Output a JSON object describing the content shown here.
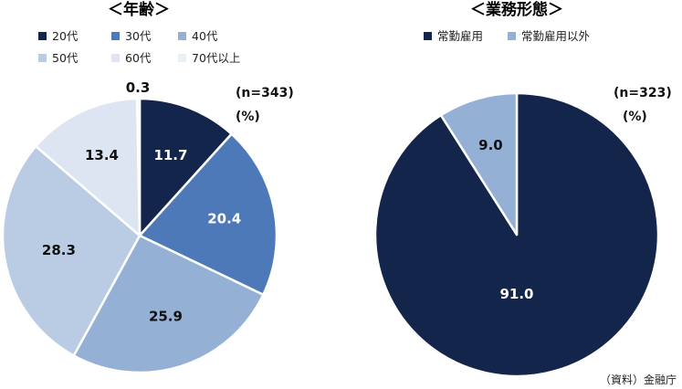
{
  "source": "（資料）金融庁",
  "colors": {
    "c20": "#13254a",
    "c30": "#4e79b8",
    "c40": "#94b0d4",
    "c50": "#b9cce4",
    "c60": "#dce5f1",
    "c70": "#e9f0f6",
    "regular": "#13254a",
    "other": "#94b0d4"
  },
  "chart_data": [
    {
      "type": "pie",
      "title": "＜年齢＞",
      "n_label": "(n=343)",
      "unit_label": "(%)",
      "legend": [
        {
          "label": "20代",
          "color": "#13254a"
        },
        {
          "label": "30代",
          "color": "#4e79b8"
        },
        {
          "label": "40代",
          "color": "#94b0d4"
        },
        {
          "label": "50代",
          "color": "#b9cce4"
        },
        {
          "label": "60代",
          "color": "#dce5f1"
        },
        {
          "label": "70代以上",
          "color": "#e9f0f6"
        }
      ],
      "slices": [
        {
          "category": "20代",
          "value": 11.7,
          "label": "11.7"
        },
        {
          "category": "30代",
          "value": 20.4,
          "label": "20.4"
        },
        {
          "category": "40代",
          "value": 25.9,
          "label": "25.9"
        },
        {
          "category": "50代",
          "value": 28.3,
          "label": "28.3"
        },
        {
          "category": "60代",
          "value": 13.4,
          "label": "13.4"
        },
        {
          "category": "70代以上",
          "value": 0.3,
          "label": "0.3"
        }
      ]
    },
    {
      "type": "pie",
      "title": "＜業務形態＞",
      "n_label": "(n=323)",
      "unit_label": "(%)",
      "legend": [
        {
          "label": "常勤雇用",
          "color": "#13254a"
        },
        {
          "label": "常勤雇用以外",
          "color": "#94b0d4"
        }
      ],
      "slices": [
        {
          "category": "常勤雇用",
          "value": 91.0,
          "label": "91.0"
        },
        {
          "category": "常勤雇用以外",
          "value": 9.0,
          "label": "9.0"
        }
      ]
    }
  ]
}
